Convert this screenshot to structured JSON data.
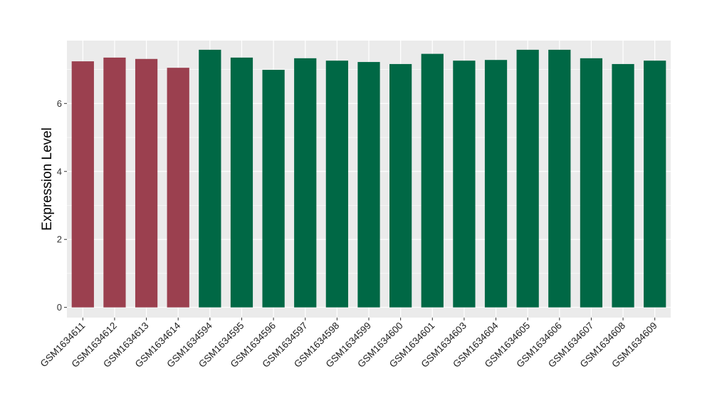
{
  "chart_data": {
    "type": "bar",
    "title": "",
    "xlabel": "",
    "ylabel": "Expression Level",
    "ylim": [
      -0.3,
      7.85
    ],
    "yticks": [
      0,
      2,
      4,
      6
    ],
    "grid": true,
    "legend": "none",
    "categories": [
      "GSM1634611",
      "GSM1634612",
      "GSM1634613",
      "GSM1634614",
      "GSM1634594",
      "GSM1634595",
      "GSM1634596",
      "GSM1634597",
      "GSM1634598",
      "GSM1634599",
      "GSM1634600",
      "GSM1634601",
      "GSM1634603",
      "GSM1634604",
      "GSM1634605",
      "GSM1634606",
      "GSM1634607",
      "GSM1634608",
      "GSM1634609"
    ],
    "values": [
      7.24,
      7.35,
      7.31,
      7.05,
      7.58,
      7.35,
      6.99,
      7.33,
      7.26,
      7.22,
      7.16,
      7.46,
      7.26,
      7.28,
      7.58,
      7.58,
      7.33,
      7.16,
      7.26
    ],
    "groups": [
      "group1",
      "group1",
      "group1",
      "group1",
      "group2",
      "group2",
      "group2",
      "group2",
      "group2",
      "group2",
      "group2",
      "group2",
      "group2",
      "group2",
      "group2",
      "group2",
      "group2",
      "group2",
      "group2"
    ],
    "colors": {
      "group1": "#9b404f",
      "group2": "#006845",
      "panel_background": "#ebebeb",
      "grid": "#ffffff"
    }
  }
}
